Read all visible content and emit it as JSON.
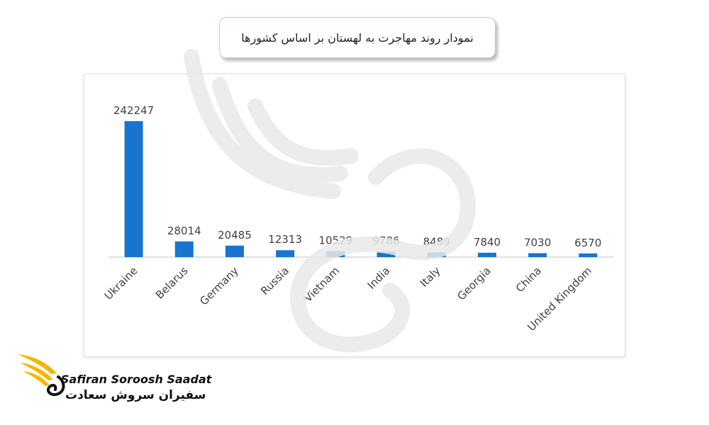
{
  "header": {
    "title": "نمودار روند مهاجرت به لهستان بر اساس کشورها"
  },
  "brand": {
    "name_en": "Safiran Soroosh Saadat",
    "name_fa": "سفیران سروش سعادت"
  },
  "colors": {
    "bar": "#1874cd",
    "logo_wing": "#f2b705",
    "title_border": "#b9ddb6"
  },
  "chart_data": {
    "type": "bar",
    "title": "",
    "xlabel": "",
    "ylabel": "",
    "categories": [
      "Ukraine",
      "Belarus",
      "Germany",
      "Russia",
      "Vietnam",
      "India",
      "Italy",
      "Georgia",
      "China",
      "United Kingdom"
    ],
    "values": [
      242247,
      28014,
      20485,
      12313,
      10529,
      9786,
      8489,
      7840,
      7030,
      6570
    ],
    "ylim": [
      0,
      242247
    ],
    "grid": false,
    "legend": "none"
  }
}
